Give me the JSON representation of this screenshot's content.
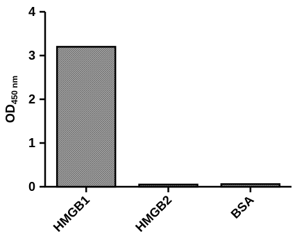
{
  "chart_data": {
    "type": "bar",
    "categories": [
      "HMGB1",
      "HMGB2",
      "BSA"
    ],
    "values": [
      3.2,
      0.05,
      0.06
    ],
    "ylabel": "OD",
    "ylabel_subscript": "450 nm",
    "ylim": [
      0,
      4
    ],
    "yticks": [
      "0",
      "1",
      "2",
      "3",
      "4"
    ],
    "grid": false,
    "legend": "none",
    "bar_fill": "#9a9a9a",
    "bar_stroke": "#000000"
  }
}
